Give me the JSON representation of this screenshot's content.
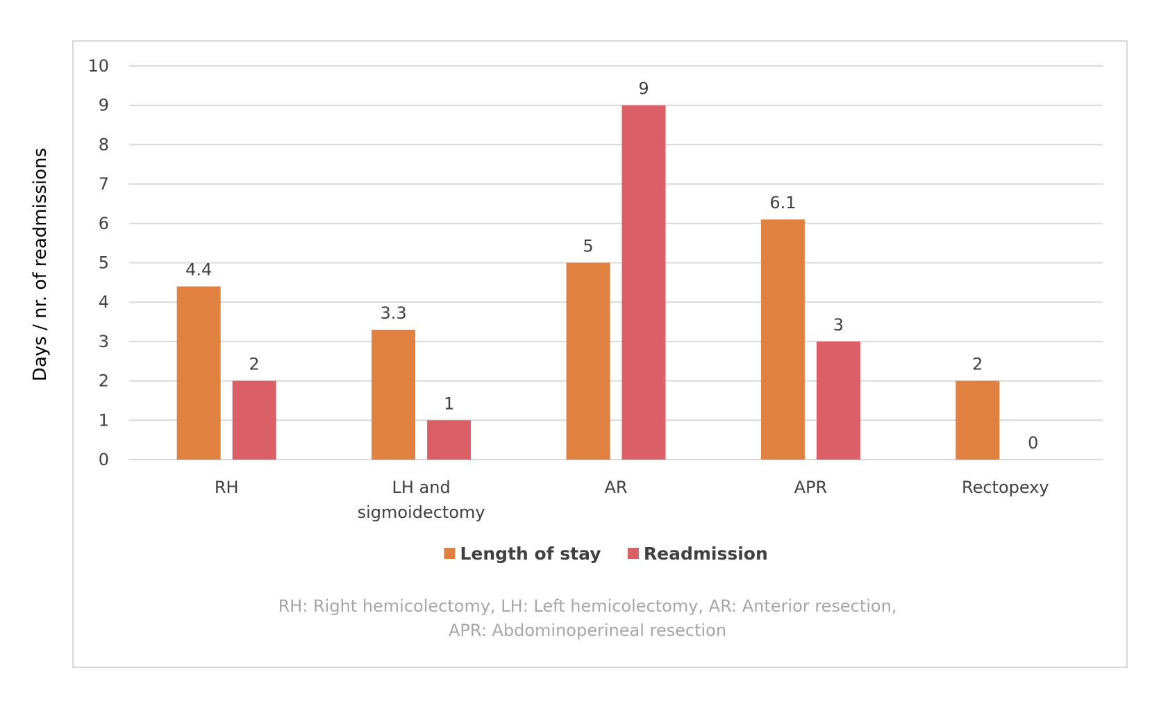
{
  "chart_data": {
    "type": "bar",
    "categories": [
      [
        "RH"
      ],
      [
        "LH and",
        "sigmoidectomy"
      ],
      [
        "AR"
      ],
      [
        "APR"
      ],
      [
        "Rectopexy"
      ]
    ],
    "series": [
      {
        "name": "Length of stay",
        "values": [
          4.4,
          3.3,
          5,
          6.1,
          2
        ],
        "labels": [
          "4.4",
          "3.3",
          "5",
          "6.1",
          "2"
        ],
        "color": "#E08142"
      },
      {
        "name": "Readmission",
        "values": [
          2,
          1,
          9,
          3,
          0
        ],
        "labels": [
          "2",
          "1",
          "9",
          "3",
          "0"
        ],
        "color": "#DB5F67"
      }
    ],
    "title": "",
    "xlabel": "",
    "ylabel": "Days / nr. of readmissions",
    "ylim": [
      0,
      10
    ],
    "yticks": [
      "0",
      "1",
      "2",
      "3",
      "4",
      "5",
      "6",
      "7",
      "8",
      "9",
      "10"
    ],
    "grid": true,
    "gridColor": "#d9d9d9",
    "legend": "bottom-center",
    "note": [
      "RH: Right hemicolectomy, LH: Left hemicolectomy, AR: Anterior resection,",
      "APR: Abdominoperineal resection"
    ]
  }
}
